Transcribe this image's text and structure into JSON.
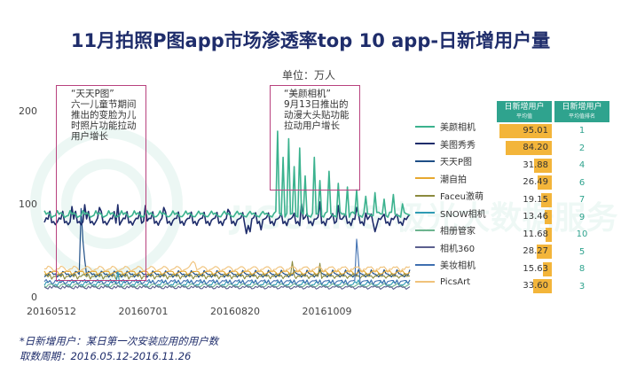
{
  "title": "11月拍照P图app市场渗透率top 10 app-日新增用户量",
  "unit_label": "单位：万人",
  "watermark": "JIGUANG 极光大数据服务",
  "annotations": [
    {
      "text": "“天天P图”\n六一儿童节期间\n推出的变脸为儿\n时照片功能拉动\n用户增长"
    },
    {
      "text": "“美颜相机”\n9月13日推出的\n动漫大头贴功能\n拉动用户增长"
    }
  ],
  "side_table": {
    "header_value": "日新增用户",
    "header_value_sub": "平均值",
    "header_rank": "日新增用户",
    "header_rank_sub": "平均值排名",
    "rows": [
      {
        "value": "95.01",
        "rank": "1",
        "fraction": 0.95
      },
      {
        "value": "84.20",
        "rank": "2",
        "fraction": 0.84
      },
      {
        "value": "31.88",
        "rank": "4",
        "fraction": 0.32
      },
      {
        "value": "26.49",
        "rank": "6",
        "fraction": 0.26
      },
      {
        "value": "19.15",
        "rank": "7",
        "fraction": 0.19
      },
      {
        "value": "13.46",
        "rank": "9",
        "fraction": 0.13
      },
      {
        "value": "11.68",
        "rank": "10",
        "fraction": 0.12
      },
      {
        "value": "28.27",
        "rank": "5",
        "fraction": 0.28
      },
      {
        "value": "15.63",
        "rank": "8",
        "fraction": 0.16
      },
      {
        "value": "33.60",
        "rank": "3",
        "fraction": 0.34
      }
    ]
  },
  "notes": {
    "line1": "*日新增用户：某日第一次安装应用的用户数",
    "line2": "取数周期：2016.05.12-2016.11.26"
  },
  "chart_data": {
    "type": "line",
    "title": "11月拍照P图app市场渗透率top 10 app-日新增用户量",
    "ylabel": "单位：万人",
    "ylim": [
      0,
      200
    ],
    "yticks": [
      0,
      100,
      200
    ],
    "x_range": [
      "2016-05-12",
      "2016-11-26"
    ],
    "xticks": [
      "20160512",
      "20160701",
      "20160820",
      "20161009"
    ],
    "grid": false,
    "legend_position": "right",
    "series": [
      {
        "name": "美颜相机",
        "color": "#3bb28e",
        "width": 1.6,
        "base": 88,
        "amp": 5,
        "spikes": [
          [
            127,
            178
          ],
          [
            130,
            150
          ],
          [
            133,
            170
          ],
          [
            136,
            140
          ],
          [
            139,
            160
          ],
          [
            142,
            130
          ],
          [
            147,
            150
          ],
          [
            150,
            125
          ],
          [
            155,
            135
          ],
          [
            160,
            122
          ],
          [
            165,
            118
          ],
          [
            170,
            115
          ],
          [
            175,
            108
          ],
          [
            180,
            112
          ],
          [
            185,
            105
          ],
          [
            190,
            110
          ],
          [
            195,
            100
          ]
        ]
      },
      {
        "name": "美图秀秀",
        "color": "#1f2d6b",
        "width": 1.6,
        "base": 82,
        "amp": 6,
        "spikes": [
          [
            15,
            97
          ],
          [
            22,
            99
          ],
          [
            30,
            96
          ],
          [
            40,
            99
          ],
          [
            55,
            98
          ],
          [
            65,
            96
          ],
          [
            100,
            94
          ],
          [
            110,
            68
          ],
          [
            112,
            70
          ],
          [
            118,
            72
          ],
          [
            140,
            100
          ],
          [
            150,
            102
          ],
          [
            160,
            98
          ],
          [
            170,
            96
          ],
          [
            175,
            90
          ],
          [
            180,
            70
          ]
        ]
      },
      {
        "name": "天天P图",
        "color": "#1e4e86",
        "width": 1.2,
        "base": 24,
        "amp": 3,
        "spikes": [
          [
            20,
            95
          ],
          [
            21,
            60
          ],
          [
            22,
            40
          ]
        ]
      },
      {
        "name": "潮自拍",
        "color": "#e7a82f",
        "width": 1.1,
        "base": 26,
        "amp": 3,
        "spikes": []
      },
      {
        "name": "Faceu激萌",
        "color": "#8b8a3e",
        "width": 1.1,
        "base": 22,
        "amp": 3,
        "spikes": [
          [
            135,
            38
          ],
          [
            150,
            36
          ]
        ]
      },
      {
        "name": "SNOW相机",
        "color": "#2f9bb4",
        "width": 1.1,
        "base": 14,
        "amp": 3,
        "spikes": [
          [
            40,
            28
          ]
        ]
      },
      {
        "name": "相册管家",
        "color": "#6db48f",
        "width": 1.1,
        "base": 12,
        "amp": 2,
        "spikes": []
      },
      {
        "name": "相机360",
        "color": "#5b5f8e",
        "width": 1.1,
        "base": 10,
        "amp": 2,
        "spikes": []
      },
      {
        "name": "美妆相机",
        "color": "#3f6fb0",
        "width": 1.1,
        "base": 16,
        "amp": 3,
        "spikes": [
          [
            170,
            62
          ],
          [
            171,
            40
          ]
        ]
      },
      {
        "name": "PicsArt",
        "color": "#f0c27a",
        "width": 1.1,
        "base": 30,
        "amp": 3,
        "spikes": [
          [
            80,
            36
          ],
          [
            81,
            38
          ],
          [
            82,
            36
          ]
        ]
      }
    ]
  }
}
